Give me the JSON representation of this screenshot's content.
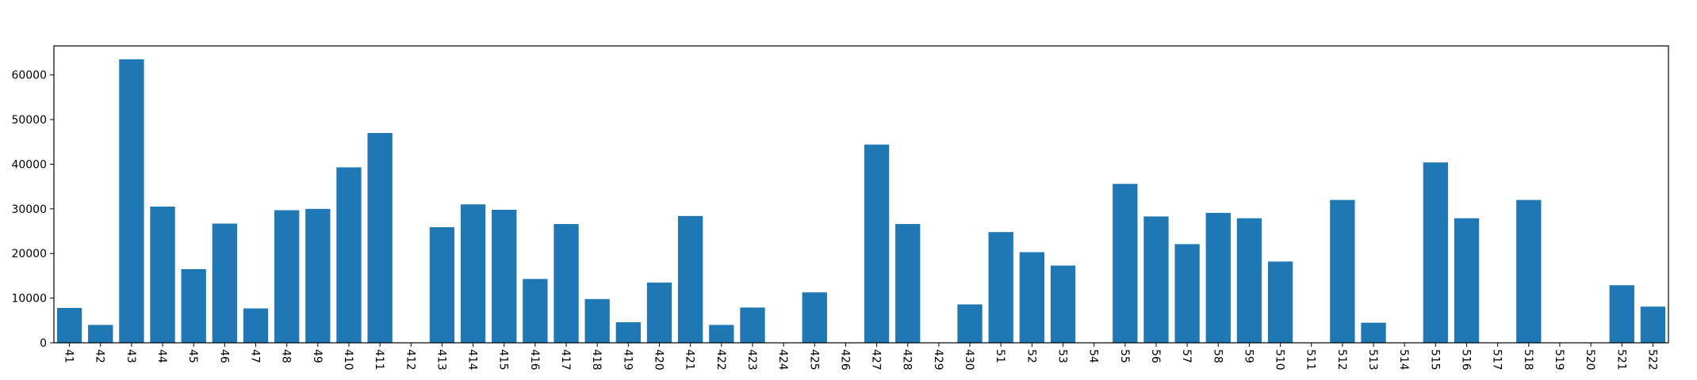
{
  "chart_data": {
    "type": "bar",
    "title": "",
    "xlabel": "",
    "ylabel": "",
    "ylim": [
      0,
      66500
    ],
    "yticks": [
      0,
      10000,
      20000,
      30000,
      40000,
      50000,
      60000
    ],
    "grid": false,
    "legend": false,
    "bar_color": "#1f77b4",
    "categories": [
      "41",
      "42",
      "43",
      "44",
      "45",
      "46",
      "47",
      "48",
      "49",
      "410",
      "411",
      "412",
      "413",
      "414",
      "415",
      "416",
      "417",
      "418",
      "419",
      "420",
      "421",
      "422",
      "423",
      "424",
      "425",
      "426",
      "427",
      "428",
      "429",
      "430",
      "51",
      "52",
      "53",
      "54",
      "55",
      "56",
      "57",
      "58",
      "59",
      "510",
      "511",
      "512",
      "513",
      "514",
      "515",
      "516",
      "517",
      "518",
      "519",
      "520",
      "521",
      "522"
    ],
    "values": [
      7800,
      4000,
      63500,
      30500,
      16500,
      26700,
      7700,
      29700,
      30000,
      39300,
      47000,
      0,
      25900,
      31000,
      29800,
      14300,
      26600,
      9800,
      4600,
      13500,
      28400,
      4000,
      7900,
      0,
      11300,
      0,
      44400,
      26600,
      0,
      8600,
      24800,
      20300,
      17300,
      0,
      35600,
      28300,
      22100,
      29100,
      27900,
      18200,
      0,
      32000,
      4500,
      0,
      40400,
      27900,
      0,
      32000,
      0,
      0,
      12900,
      8100
    ]
  }
}
